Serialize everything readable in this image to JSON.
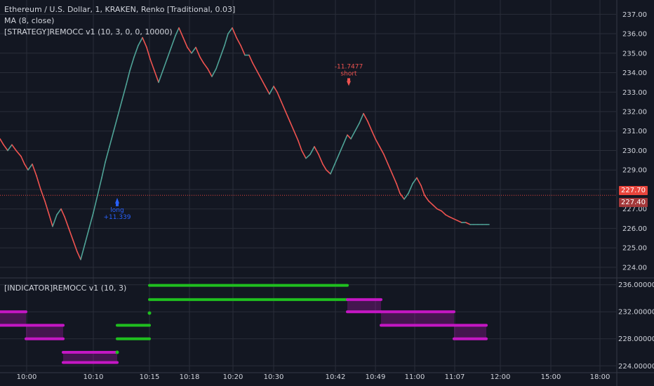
{
  "header": {
    "symbol_line": "Ethereum / U.S. Dollar, 1, KRAKEN, Renko [Traditional, 0.03]",
    "ma_line": "MA (8, close)",
    "strategy_line": "[STRATEGY]REMOCC v1 (10, 3, 0, 0, 10000)",
    "indicator_line": "[INDICATOR]REMOCC v1 (10, 3)"
  },
  "colors": {
    "background": "#131722",
    "grid": "#2a2e39",
    "text": "#d1d4dc",
    "up": "#4fa397",
    "down": "#ef5350",
    "long_signal": "#2962ff",
    "short_signal": "#ef5350",
    "green_band": "#1fbf1f",
    "magenta_band": "#c417c4",
    "current_tag": "#e8453c",
    "second_tag": "#a3383a"
  },
  "price_tags": {
    "current": "227.70",
    "second": "227.40"
  },
  "chart_data": [
    {
      "type": "line",
      "pane": "main",
      "title": "Ethereum / U.S. Dollar, 1, KRAKEN, Renko [Traditional, 0.03]",
      "y_ticks": [
        "237.00",
        "236.00",
        "235.00",
        "234.00",
        "233.00",
        "232.00",
        "231.00",
        "230.00",
        "229.00",
        "228.00",
        "227.00",
        "226.00",
        "225.00",
        "224.00"
      ],
      "x_ticks": [
        "10:00",
        "10:10",
        "10:15",
        "10:18",
        "10:20",
        "10:30",
        "10:42",
        "10:49",
        "11:00",
        "11:07",
        "12:00",
        "15:00",
        "18:00"
      ],
      "ylim": [
        223.6,
        237.3
      ],
      "current_price": 227.7,
      "series": [
        {
          "name": "MA (8, close)",
          "x": [
            0,
            5,
            11,
            17,
            23,
            30,
            35,
            40,
            46,
            52,
            58,
            64,
            70,
            75,
            81,
            87,
            92,
            98,
            104,
            110,
            115,
            121,
            127,
            133,
            139,
            145,
            150,
            156,
            162,
            168,
            174,
            180,
            185,
            191,
            197,
            203,
            209,
            214,
            220,
            226,
            232,
            238,
            244,
            250,
            255,
            261,
            267,
            273,
            279,
            285,
            290,
            296,
            302,
            308,
            314,
            320,
            325,
            331,
            337,
            343,
            349,
            355,
            360,
            366,
            372,
            378,
            384,
            390,
            395,
            401,
            407,
            413,
            419,
            425,
            430,
            436,
            442,
            448,
            454,
            460,
            465,
            471,
            477,
            483,
            489,
            495,
            500,
            506,
            512,
            518,
            524,
            530,
            535,
            541,
            547,
            553,
            559,
            565,
            570,
            576,
            582,
            588,
            594,
            600,
            605,
            611,
            617,
            623,
            629,
            635,
            640,
            646,
            652,
            658,
            664,
            670,
            675,
            681,
            687,
            693,
            697
          ],
          "y": [
            230.6,
            230.3,
            230.0,
            230.3,
            230.0,
            229.7,
            229.3,
            229.0,
            229.3,
            228.7,
            228.0,
            227.4,
            226.7,
            226.1,
            226.7,
            227.0,
            226.6,
            226.0,
            225.4,
            224.8,
            224.4,
            225.2,
            226.0,
            226.8,
            227.7,
            228.6,
            229.4,
            230.2,
            231.0,
            231.8,
            232.6,
            233.4,
            234.1,
            234.8,
            235.4,
            235.8,
            235.3,
            234.7,
            234.1,
            233.5,
            234.1,
            234.7,
            235.3,
            235.9,
            236.3,
            235.8,
            235.3,
            235.0,
            235.3,
            234.8,
            234.5,
            234.2,
            233.8,
            234.2,
            234.8,
            235.4,
            236.0,
            236.3,
            235.8,
            235.4,
            234.9,
            234.9,
            234.5,
            234.1,
            233.7,
            233.3,
            232.9,
            233.3,
            233.0,
            232.5,
            232.0,
            231.5,
            231.0,
            230.5,
            230.0,
            229.6,
            229.8,
            230.2,
            229.8,
            229.3,
            229.0,
            228.8,
            229.3,
            229.8,
            230.3,
            230.8,
            230.6,
            231.0,
            231.4,
            231.9,
            231.5,
            231.0,
            230.6,
            230.2,
            229.8,
            229.3,
            228.8,
            228.3,
            227.8,
            227.5,
            227.8,
            228.3,
            228.6,
            228.2,
            227.7,
            227.4,
            227.2,
            227.0,
            226.9,
            226.7,
            226.6,
            226.5,
            226.4,
            226.3,
            226.3,
            226.2,
            226.2,
            226.2,
            226.2,
            226.2,
            226.2
          ]
        }
      ],
      "annotations": [
        {
          "label": "long",
          "value": "+11.339",
          "price": 227.5,
          "x": 167
        },
        {
          "label": "short",
          "value": "-11.7477",
          "price": 233.5,
          "x": 497
        }
      ]
    },
    {
      "type": "line",
      "pane": "indicator",
      "title": "[INDICATOR]REMOCC v1 (10, 3)",
      "y_ticks": [
        "236.00000",
        "232.00000",
        "228.00000",
        "224.00000"
      ],
      "ylim": [
        223.3,
        236.8
      ],
      "series": [
        {
          "name": "upper",
          "segments": [
            {
              "x0": 0,
              "x1": 37,
              "y": 232.0,
              "color": "magenta"
            },
            {
              "x0": 37,
              "x1": 90,
              "y": 230.0,
              "color": "magenta"
            },
            {
              "x0": 90,
              "x1": 167,
              "y": 226.0,
              "color": "magenta"
            },
            {
              "x0": 167,
              "x1": 213,
              "y": 230.0,
              "color": "green"
            },
            {
              "x0": 213,
              "x1": 495,
              "y": 235.9,
              "color": "green"
            },
            {
              "x0": 495,
              "x1": 543,
              "y": 233.8,
              "color": "magenta"
            },
            {
              "x0": 543,
              "x1": 647,
              "y": 232.0,
              "color": "magenta"
            },
            {
              "x0": 647,
              "x1": 693,
              "y": 230.0,
              "color": "magenta"
            }
          ]
        },
        {
          "name": "lower",
          "segments": [
            {
              "x0": 0,
              "x1": 37,
              "y": 230.0,
              "color": "magenta"
            },
            {
              "x0": 37,
              "x1": 90,
              "y": 228.0,
              "color": "magenta"
            },
            {
              "x0": 90,
              "x1": 167,
              "y": 224.5,
              "color": "magenta"
            },
            {
              "x0": 167,
              "x1": 213,
              "y": 228.0,
              "color": "green"
            },
            {
              "x0": 213,
              "x1": 495,
              "y": 233.8,
              "color": "green"
            },
            {
              "x0": 495,
              "x1": 543,
              "y": 232.0,
              "color": "magenta"
            },
            {
              "x0": 543,
              "x1": 647,
              "y": 230.0,
              "color": "magenta"
            },
            {
              "x0": 647,
              "x1": 693,
              "y": 228.0,
              "color": "magenta"
            }
          ]
        }
      ]
    }
  ]
}
